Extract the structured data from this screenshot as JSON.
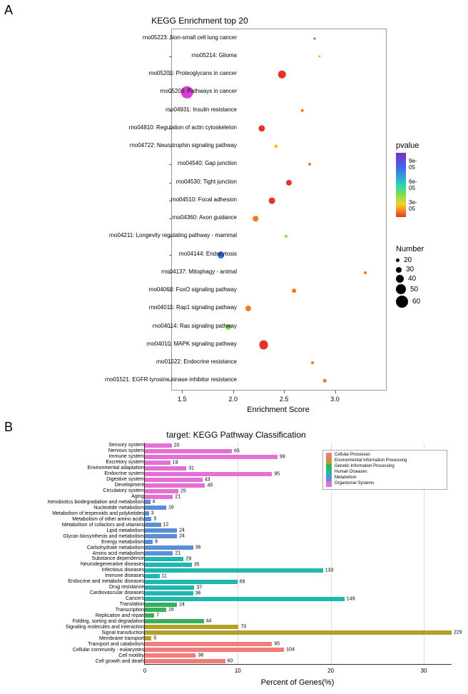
{
  "panelA": {
    "label": "A",
    "title": "KEGG Enrichment top 20",
    "xlabel": "Enrichment Score",
    "xlim": [
      1.4,
      3.5
    ],
    "xticks": [
      1.5,
      2.0,
      2.5,
      3.0
    ],
    "plot_bg": "#ffffff",
    "border_color": "#999999",
    "pvalue_legend": {
      "title": "pvalue",
      "stops": [
        {
          "v": 0.0,
          "c": "#7a2fbf"
        },
        {
          "v": 0.25,
          "c": "#3b6ff0"
        },
        {
          "v": 0.5,
          "c": "#2ad4b8"
        },
        {
          "v": 0.65,
          "c": "#7be04a"
        },
        {
          "v": 0.8,
          "c": "#f5d22a"
        },
        {
          "v": 0.9,
          "c": "#f58a1f"
        },
        {
          "v": 1.0,
          "c": "#e6332a"
        }
      ],
      "ticks": [
        {
          "pos": 0.18,
          "label": "9e-05"
        },
        {
          "pos": 0.5,
          "label": "6e-05"
        },
        {
          "pos": 0.82,
          "label": "3e-05"
        }
      ]
    },
    "size_legend": {
      "title": "Number",
      "rows": [
        {
          "n": 20,
          "d": 5
        },
        {
          "n": 30,
          "d": 8
        },
        {
          "n": 40,
          "d": 11
        },
        {
          "n": 50,
          "d": 14
        },
        {
          "n": 60,
          "d": 17
        }
      ]
    },
    "rows": [
      {
        "label": "rno05223: Non-small cell lung cancer",
        "x": 2.8,
        "n": 17,
        "color": "#3b6ff0"
      },
      {
        "label": "rno05214: Glioma",
        "x": 2.85,
        "n": 18,
        "color": "#f5b11f"
      },
      {
        "label": "rno05205: Proteoglycans in cancer",
        "x": 2.48,
        "n": 42,
        "color": "#e6332a"
      },
      {
        "label": "rno05200: Pathways in cancer",
        "x": 1.55,
        "n": 62,
        "color": "#d63fd1"
      },
      {
        "label": "rno04931: Insulin resistance",
        "x": 2.68,
        "n": 22,
        "color": "#f07a1f"
      },
      {
        "label": "rno04810: Regulation of actin cytoskeleton",
        "x": 2.28,
        "n": 38,
        "color": "#e6332a"
      },
      {
        "label": "rno04722: Neurotrophin signaling pathway",
        "x": 2.42,
        "n": 24,
        "color": "#f5c21f"
      },
      {
        "label": "rno04540: Gap junction",
        "x": 2.75,
        "n": 20,
        "color": "#f07a1f"
      },
      {
        "label": "rno04530: Tight junction",
        "x": 2.55,
        "n": 34,
        "color": "#e6332a"
      },
      {
        "label": "rno04510: Focal adhesion",
        "x": 2.38,
        "n": 36,
        "color": "#e6332a"
      },
      {
        "label": "rno04360: Axon guidance",
        "x": 2.22,
        "n": 32,
        "color": "#f07a1f"
      },
      {
        "label": "rno04211: Longevity regulating pathway - mammal",
        "x": 2.52,
        "n": 20,
        "color": "#7be04a"
      },
      {
        "label": "rno04144: Endocytosis",
        "x": 1.88,
        "n": 40,
        "color": "#3b6ff0"
      },
      {
        "label": "rno04137: Mitophagy - animal",
        "x": 3.3,
        "n": 20,
        "color": "#f07a1f"
      },
      {
        "label": "rno04068: FoxO signaling pathway",
        "x": 2.6,
        "n": 26,
        "color": "#f07a1f"
      },
      {
        "label": "rno04015: Rap1 signaling pathway",
        "x": 2.15,
        "n": 34,
        "color": "#f07a1f"
      },
      {
        "label": "rno04014: Ras signaling pathway",
        "x": 1.95,
        "n": 34,
        "color": "#7be04a"
      },
      {
        "label": "rno04010: MAPK signaling pathway",
        "x": 2.3,
        "n": 50,
        "color": "#e6332a"
      },
      {
        "label": "rno01522: Endocrine resistance",
        "x": 2.78,
        "n": 20,
        "color": "#f07a1f"
      },
      {
        "label": "rno01521: EGFR tyrosine kinase inhibitor resistance",
        "x": 2.9,
        "n": 22,
        "color": "#f07a1f"
      }
    ]
  },
  "panelB": {
    "label": "B",
    "title": "target: KEGG Pathway Classification",
    "xlabel": "Percent of Genes(%)",
    "xticks": [
      0,
      10,
      20,
      30
    ],
    "xmax": 33,
    "grid_color": "#dddddd",
    "max_value_for_scale": 229,
    "categories": {
      "Cellular Processes": "#f47b7b",
      "Environmental Information Processing": "#b2a02a",
      "Genetic Information Processing": "#3aae5f",
      "Human Diseases": "#1fb7b0",
      "Metabolism": "#5a8ed6",
      "Organismal Systems": "#e470d6"
    },
    "legend_order": [
      "Cellular Processes",
      "Environmental Information Processing",
      "Genetic Information Processing",
      "Human Diseases",
      "Metabolism",
      "Organismal Systems"
    ],
    "rows": [
      {
        "label": "Sensory system",
        "v": 20,
        "cat": "Organismal Systems"
      },
      {
        "label": "Nervous system",
        "v": 65,
        "cat": "Organismal Systems"
      },
      {
        "label": "Immune system",
        "v": 99,
        "cat": "Organismal Systems"
      },
      {
        "label": "Excretory system",
        "v": 19,
        "cat": "Organismal Systems"
      },
      {
        "label": "Environmental adaptation",
        "v": 31,
        "cat": "Organismal Systems"
      },
      {
        "label": "Endocrine system",
        "v": 95,
        "cat": "Organismal Systems"
      },
      {
        "label": "Digestive system",
        "v": 43,
        "cat": "Organismal Systems"
      },
      {
        "label": "Development",
        "v": 45,
        "cat": "Organismal Systems"
      },
      {
        "label": "Circulatory system",
        "v": 25,
        "cat": "Organismal Systems"
      },
      {
        "label": "Aging",
        "v": 21,
        "cat": "Organismal Systems"
      },
      {
        "label": "Xenobiotics biodegradation and metabolism",
        "v": 4,
        "cat": "Metabolism"
      },
      {
        "label": "Nucleotide metabolism",
        "v": 16,
        "cat": "Metabolism"
      },
      {
        "label": "Metabolism of terpenoids and polyketides",
        "v": 3,
        "cat": "Metabolism"
      },
      {
        "label": "Metabolism of other amino acids",
        "v": 5,
        "cat": "Metabolism"
      },
      {
        "label": "Metabolism of cofactors and vitamins",
        "v": 12,
        "cat": "Metabolism"
      },
      {
        "label": "Lipid metabolism",
        "v": 24,
        "cat": "Metabolism"
      },
      {
        "label": "Glycan biosynthesis and metabolism",
        "v": 24,
        "cat": "Metabolism"
      },
      {
        "label": "Energy metabolism",
        "v": 6,
        "cat": "Metabolism"
      },
      {
        "label": "Carbohydrate metabolism",
        "v": 36,
        "cat": "Metabolism"
      },
      {
        "label": "Amino acid metabolism",
        "v": 21,
        "cat": "Metabolism"
      },
      {
        "label": "Substance dependence",
        "v": 29,
        "cat": "Human Diseases"
      },
      {
        "label": "Neurodegenerative diseases",
        "v": 35,
        "cat": "Human Diseases"
      },
      {
        "label": "Infectious diseases",
        "v": 133,
        "cat": "Human Diseases"
      },
      {
        "label": "Immune diseases",
        "v": 11,
        "cat": "Human Diseases"
      },
      {
        "label": "Endocrine and metabolic diseases",
        "v": 69,
        "cat": "Human Diseases"
      },
      {
        "label": "Drug resistance",
        "v": 37,
        "cat": "Human Diseases"
      },
      {
        "label": "Cardiovascular diseases",
        "v": 36,
        "cat": "Human Diseases"
      },
      {
        "label": "Cancers",
        "v": 149,
        "cat": "Human Diseases"
      },
      {
        "label": "Translation",
        "v": 24,
        "cat": "Genetic Information Processing"
      },
      {
        "label": "Transcription",
        "v": 16,
        "cat": "Genetic Information Processing"
      },
      {
        "label": "Replication and repair",
        "v": 7,
        "cat": "Genetic Information Processing"
      },
      {
        "label": "Folding, sorting and degradation",
        "v": 44,
        "cat": "Genetic Information Processing"
      },
      {
        "label": "Signaling molecules and interaction",
        "v": 70,
        "cat": "Environmental Information Processing"
      },
      {
        "label": "Signal transduction",
        "v": 229,
        "cat": "Environmental Information Processing"
      },
      {
        "label": "Membrane transport",
        "v": 5,
        "cat": "Environmental Information Processing"
      },
      {
        "label": "Transport and catabolism",
        "v": 95,
        "cat": "Cellular Processes"
      },
      {
        "label": "Cellular community - eukaryotes",
        "v": 104,
        "cat": "Cellular Processes"
      },
      {
        "label": "Cell motility",
        "v": 38,
        "cat": "Cellular Processes"
      },
      {
        "label": "Cell growth and death",
        "v": 60,
        "cat": "Cellular Processes"
      }
    ]
  }
}
